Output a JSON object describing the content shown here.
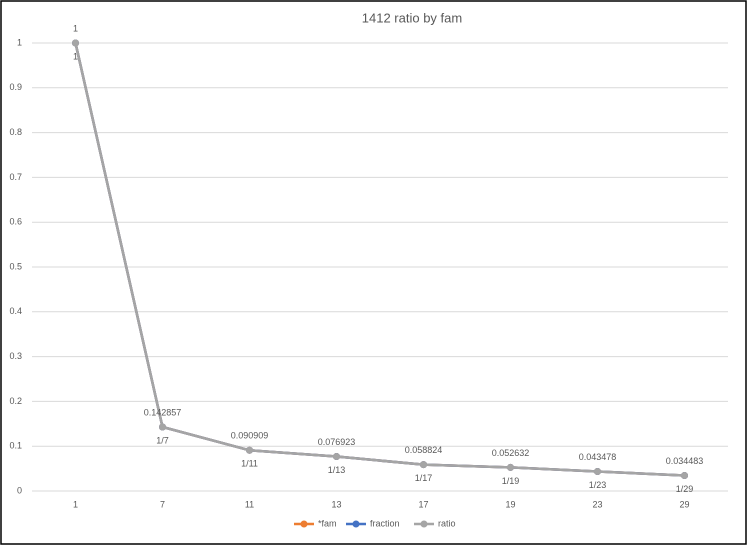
{
  "chart_data": {
    "type": "line",
    "title": "1412 ratio by fam",
    "categories": [
      "1",
      "7",
      "11",
      "13",
      "17",
      "19",
      "23",
      "29"
    ],
    "series": [
      {
        "name": "*fam",
        "color": "#ed7d31",
        "values": [
          1,
          0.142857,
          0.090909,
          0.076923,
          0.058824,
          0.052632,
          0.043478,
          0.034483
        ]
      },
      {
        "name": "fraction",
        "color": "#4472c4",
        "values": [
          1,
          0.142857,
          0.090909,
          0.076923,
          0.058824,
          0.052632,
          0.043478,
          0.034483
        ],
        "value_labels": [
          "1",
          "1/7",
          "1/11",
          "1/13",
          "1/17",
          "1/19",
          "1/23",
          "1/29"
        ]
      },
      {
        "name": "ratio",
        "color": "#a5a5a5",
        "values": [
          1,
          0.142857,
          0.090909,
          0.076923,
          0.058824,
          0.052632,
          0.043478,
          0.034483
        ]
      }
    ],
    "ylim": [
      0,
      1
    ],
    "yticks": [
      0,
      0.1,
      0.2,
      0.3,
      0.4,
      0.5,
      0.6,
      0.7,
      0.8,
      0.9,
      1
    ],
    "grid": true,
    "legend": "bottom"
  }
}
